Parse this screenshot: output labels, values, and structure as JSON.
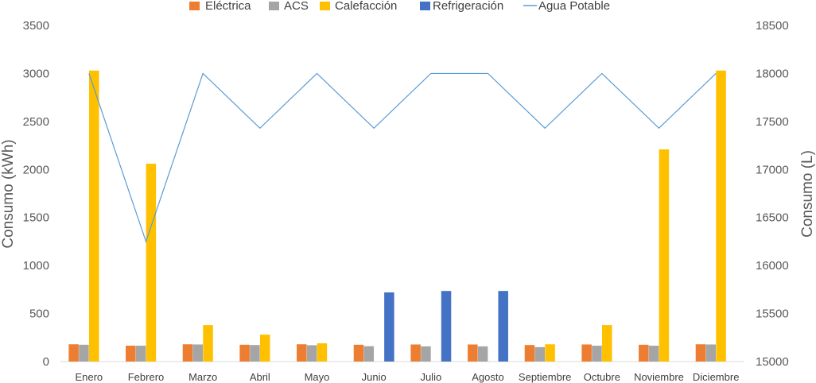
{
  "chart_data": {
    "type": "bar",
    "categories": [
      "Enero",
      "Febrero",
      "Marzo",
      "Abril",
      "Mayo",
      "Junio",
      "Julio",
      "Agosto",
      "Septiembre",
      "Octubre",
      "Noviembre",
      "Diciembre"
    ],
    "series": [
      {
        "name": "Eléctrica",
        "color": "#ED7D31",
        "axis": "left",
        "kind": "bar",
        "values": [
          180,
          165,
          180,
          175,
          180,
          175,
          178,
          178,
          172,
          178,
          175,
          180
        ]
      },
      {
        "name": "ACS",
        "color": "#A5A5A5",
        "axis": "left",
        "kind": "bar",
        "values": [
          175,
          165,
          178,
          172,
          170,
          160,
          158,
          158,
          150,
          165,
          165,
          178
        ]
      },
      {
        "name": "Calefacción",
        "color": "#FFC000",
        "axis": "left",
        "kind": "bar",
        "values": [
          3030,
          2060,
          380,
          280,
          190,
          0,
          0,
          0,
          180,
          380,
          2210,
          3030
        ]
      },
      {
        "name": "Refrigeración",
        "color": "#4472C4",
        "axis": "left",
        "kind": "bar",
        "values": [
          0,
          0,
          0,
          0,
          0,
          720,
          735,
          735,
          0,
          0,
          0,
          0
        ]
      },
      {
        "name": "Agua Potable",
        "color": "#5B9BD5",
        "axis": "right",
        "kind": "line",
        "values": [
          18000,
          16250,
          18000,
          17430,
          18000,
          17430,
          18000,
          18000,
          17430,
          18000,
          17430,
          18000
        ]
      }
    ],
    "ylabel": "Consumo (kWh)",
    "y2label": "Consumo (L)",
    "ylim": [
      0,
      3500
    ],
    "y2lim": [
      15000,
      18500
    ],
    "yticks": [
      "0",
      "500",
      "1000",
      "1500",
      "2000",
      "2500",
      "3000",
      "3500"
    ],
    "y2ticks": [
      "15000",
      "15500",
      "16000",
      "16500",
      "17000",
      "17500",
      "18000",
      "18500"
    ],
    "grid": false,
    "legend_position": "top"
  }
}
